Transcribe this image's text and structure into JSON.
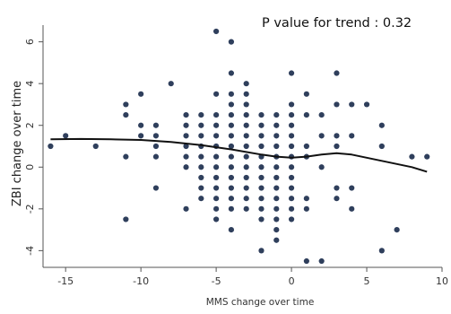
{
  "chart_data": {
    "type": "scatter",
    "title": "",
    "annotation": "P value for trend : 0.32",
    "xlabel": "MMS change over time",
    "ylabel": "ZBI change over time",
    "xlim": [
      -16.5,
      10
    ],
    "ylim": [
      -4.8,
      6.8
    ],
    "xticks": [
      -15,
      -10,
      -5,
      0,
      5,
      10
    ],
    "yticks": [
      -4,
      -2,
      0,
      2,
      4,
      6
    ],
    "grid": false,
    "legend": "none",
    "colors": {
      "points": "#2f3f5c",
      "trend": "#111111",
      "axis": "#555555"
    },
    "points": [
      [
        -16,
        1
      ],
      [
        -15,
        1.5
      ],
      [
        -13,
        1
      ],
      [
        -11,
        3
      ],
      [
        -11,
        2.5
      ],
      [
        -11,
        0.5
      ],
      [
        -11,
        -2.5
      ],
      [
        -10,
        3.5
      ],
      [
        -10,
        2
      ],
      [
        -10,
        1.5
      ],
      [
        -9,
        2
      ],
      [
        -9,
        1.5
      ],
      [
        -9,
        1
      ],
      [
        -9,
        0.5
      ],
      [
        -9,
        -1
      ],
      [
        -8,
        4
      ],
      [
        -7,
        2.5
      ],
      [
        -7,
        2
      ],
      [
        -7,
        1.5
      ],
      [
        -7,
        1
      ],
      [
        -7,
        0.5
      ],
      [
        -7,
        0
      ],
      [
        -7,
        -2
      ],
      [
        -6,
        2.5
      ],
      [
        -6,
        2
      ],
      [
        -6,
        1.5
      ],
      [
        -6,
        1
      ],
      [
        -6,
        0.5
      ],
      [
        -6,
        0
      ],
      [
        -6,
        -0.5
      ],
      [
        -6,
        -1
      ],
      [
        -6,
        -1.5
      ],
      [
        -5,
        6.5
      ],
      [
        -5,
        3.5
      ],
      [
        -5,
        2.5
      ],
      [
        -5,
        2
      ],
      [
        -5,
        1.5
      ],
      [
        -5,
        1
      ],
      [
        -5,
        0.5
      ],
      [
        -5,
        0
      ],
      [
        -5,
        -0.5
      ],
      [
        -5,
        -1
      ],
      [
        -5,
        -1.5
      ],
      [
        -5,
        -2
      ],
      [
        -5,
        -2.5
      ],
      [
        -4,
        6
      ],
      [
        -4,
        4.5
      ],
      [
        -4,
        3.5
      ],
      [
        -4,
        3
      ],
      [
        -4,
        2.5
      ],
      [
        -4,
        2
      ],
      [
        -4,
        1.5
      ],
      [
        -4,
        1
      ],
      [
        -4,
        0.5
      ],
      [
        -4,
        0
      ],
      [
        -4,
        -0.5
      ],
      [
        -4,
        -1
      ],
      [
        -4,
        -1.5
      ],
      [
        -4,
        -2
      ],
      [
        -4,
        -3
      ],
      [
        -3,
        4
      ],
      [
        -3,
        3.5
      ],
      [
        -3,
        3
      ],
      [
        -3,
        2.5
      ],
      [
        -3,
        2
      ],
      [
        -3,
        1.5
      ],
      [
        -3,
        1
      ],
      [
        -3,
        0.5
      ],
      [
        -3,
        0
      ],
      [
        -3,
        -0.5
      ],
      [
        -3,
        -1
      ],
      [
        -3,
        -1.5
      ],
      [
        -3,
        -2
      ],
      [
        -2,
        2.5
      ],
      [
        -2,
        2
      ],
      [
        -2,
        1.5
      ],
      [
        -2,
        1
      ],
      [
        -2,
        0.5
      ],
      [
        -2,
        0
      ],
      [
        -2,
        -0.5
      ],
      [
        -2,
        -1
      ],
      [
        -2,
        -1.5
      ],
      [
        -2,
        -2
      ],
      [
        -2,
        -2.5
      ],
      [
        -2,
        -4
      ],
      [
        -1,
        2.5
      ],
      [
        -1,
        2
      ],
      [
        -1,
        1.5
      ],
      [
        -1,
        1
      ],
      [
        -1,
        0.5
      ],
      [
        -1,
        0
      ],
      [
        -1,
        -0.5
      ],
      [
        -1,
        -1
      ],
      [
        -1,
        -1.5
      ],
      [
        -1,
        -2
      ],
      [
        -1,
        -2.5
      ],
      [
        -1,
        -3
      ],
      [
        -1,
        -3.5
      ],
      [
        0,
        4.5
      ],
      [
        0,
        3
      ],
      [
        0,
        2.5
      ],
      [
        0,
        2
      ],
      [
        0,
        1.5
      ],
      [
        0,
        1
      ],
      [
        0,
        0.5
      ],
      [
        0,
        0
      ],
      [
        0,
        -0.5
      ],
      [
        0,
        -1
      ],
      [
        0,
        -1.5
      ],
      [
        0,
        -2
      ],
      [
        0,
        -2.5
      ],
      [
        1,
        3.5
      ],
      [
        1,
        2.5
      ],
      [
        1,
        1
      ],
      [
        1,
        0.5
      ],
      [
        1,
        -1.5
      ],
      [
        1,
        -2
      ],
      [
        1,
        -4.5
      ],
      [
        2,
        2.5
      ],
      [
        2,
        1.5
      ],
      [
        2,
        0
      ],
      [
        2,
        -4.5
      ],
      [
        3,
        4.5
      ],
      [
        3,
        3
      ],
      [
        3,
        1.5
      ],
      [
        3,
        1
      ],
      [
        3,
        -1
      ],
      [
        3,
        -1.5
      ],
      [
        4,
        3
      ],
      [
        4,
        1.5
      ],
      [
        4,
        -1
      ],
      [
        4,
        -2
      ],
      [
        5,
        3
      ],
      [
        6,
        2
      ],
      [
        6,
        1
      ],
      [
        6,
        -4
      ],
      [
        7,
        -3
      ],
      [
        8,
        0.5
      ],
      [
        9,
        0.5
      ]
    ],
    "trend": [
      [
        -16,
        1.33
      ],
      [
        -14,
        1.35
      ],
      [
        -12,
        1.33
      ],
      [
        -10,
        1.3
      ],
      [
        -8,
        1.2
      ],
      [
        -6,
        1.05
      ],
      [
        -4,
        0.85
      ],
      [
        -2,
        0.6
      ],
      [
        -1,
        0.5
      ],
      [
        0,
        0.45
      ],
      [
        1,
        0.5
      ],
      [
        2,
        0.6
      ],
      [
        3,
        0.67
      ],
      [
        4,
        0.6
      ],
      [
        5,
        0.45
      ],
      [
        6,
        0.3
      ],
      [
        7,
        0.15
      ],
      [
        8,
        0
      ],
      [
        9,
        -0.22
      ]
    ]
  }
}
